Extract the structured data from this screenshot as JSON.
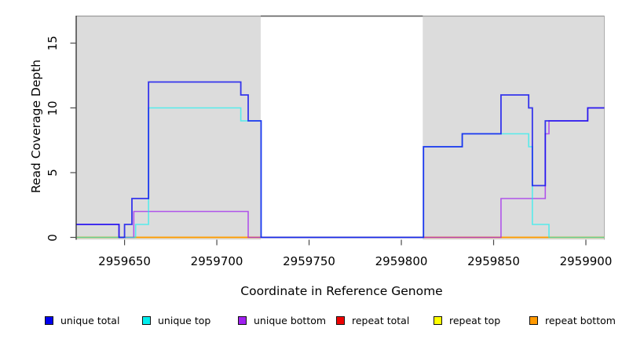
{
  "chart_data": {
    "type": "line",
    "subtype": "step",
    "title": "",
    "xlabel": "Coordinate in Reference Genome",
    "ylabel": "Read Coverage Depth",
    "xlim": [
      2959624,
      2959910
    ],
    "ylim": [
      0,
      17
    ],
    "grid": false,
    "legend_position": "bottom",
    "x_ticks": [
      2959650,
      2959700,
      2959750,
      2959800,
      2959850,
      2959900
    ],
    "x_tick_labels": [
      "2959650",
      "2959700",
      "2959750",
      "2959800",
      "2959850",
      "2959900"
    ],
    "y_ticks": [
      0,
      5,
      10,
      15
    ],
    "y_tick_labels": [
      "0",
      "5",
      "10",
      "15"
    ],
    "shaded_regions": [
      {
        "name": "left-gray-region",
        "x0": 2959624,
        "x1": 2959723.8,
        "color": "#dcdcdc"
      },
      {
        "name": "right-gray-region",
        "x0": 2959811.6,
        "x1": 2959910,
        "color": "#dcdcdc"
      }
    ],
    "legend": [
      {
        "label": "unique total",
        "color": "#0000ee"
      },
      {
        "label": "unique top",
        "color": "#00eeee"
      },
      {
        "label": "unique bottom",
        "color": "#a020f0"
      },
      {
        "label": "repeat total",
        "color": "#ee0000"
      },
      {
        "label": "repeat top",
        "color": "#ffff00"
      },
      {
        "label": "repeat bottom",
        "color": "#ff9900"
      }
    ],
    "series": [
      {
        "name": "repeat total",
        "color": "#ee0000",
        "opacity": 1,
        "width": 1.4,
        "steps": [
          [
            2959624,
            0
          ]
        ]
      },
      {
        "name": "repeat top",
        "color": "#ffff00",
        "opacity": 1,
        "width": 1.4,
        "steps": [
          [
            2959624,
            0
          ]
        ]
      },
      {
        "name": "repeat bottom",
        "color": "#ff9900",
        "opacity": 1,
        "width": 1.6,
        "steps": [
          [
            2959624,
            0
          ]
        ]
      },
      {
        "name": "unique bottom",
        "color": "#a020f0",
        "opacity": 0.72,
        "width": 1.6,
        "steps": [
          [
            2959624,
            1
          ],
          [
            2959647,
            0
          ],
          [
            2959655,
            2
          ],
          [
            2959717,
            0
          ],
          [
            2959854,
            3
          ],
          [
            2959878,
            8
          ],
          [
            2959880,
            9
          ],
          [
            2959901,
            10
          ]
        ]
      },
      {
        "name": "unique top",
        "color": "#00f5f5",
        "opacity": 0.6,
        "width": 1.6,
        "steps": [
          [
            2959624,
            0
          ],
          [
            2959656,
            1
          ],
          [
            2959663,
            10
          ],
          [
            2959713,
            9
          ],
          [
            2959724,
            0
          ],
          [
            2959812,
            7
          ],
          [
            2959833,
            8
          ],
          [
            2959869,
            7
          ],
          [
            2959871,
            1
          ],
          [
            2959880,
            0
          ]
        ]
      },
      {
        "name": "unique total",
        "color": "#0a0af0",
        "opacity": 0.8,
        "width": 1.8,
        "steps": [
          [
            2959624,
            1
          ],
          [
            2959647,
            0
          ],
          [
            2959650,
            1
          ],
          [
            2959654,
            3
          ],
          [
            2959663,
            12
          ],
          [
            2959713,
            11
          ],
          [
            2959717,
            9
          ],
          [
            2959724,
            0
          ],
          [
            2959812,
            7
          ],
          [
            2959833,
            8
          ],
          [
            2959854,
            11
          ],
          [
            2959869,
            10
          ],
          [
            2959871,
            4
          ],
          [
            2959878,
            9
          ],
          [
            2959901,
            10
          ]
        ]
      }
    ]
  },
  "axes": {
    "x_title": "Coordinate in Reference Genome",
    "y_title": "Read Coverage Depth"
  }
}
